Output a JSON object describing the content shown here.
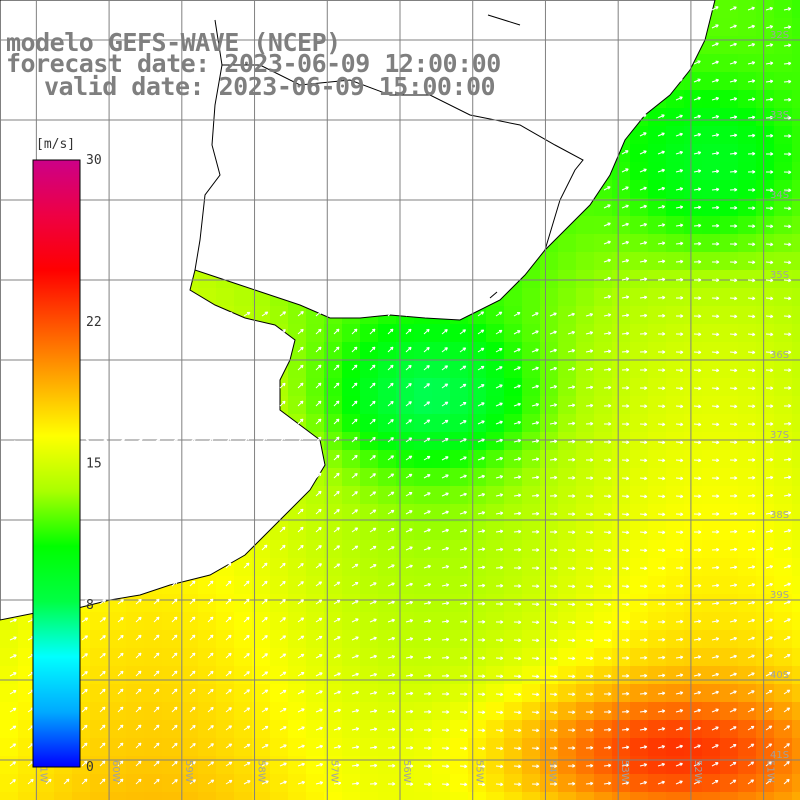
{
  "title": {
    "line1": "modelo GEFS-WAVE (NCEP)",
    "line2": "forecast date: 2023-06-09 12:00:00",
    "line3": "valid date: 2023-06-09 15:00:00"
  },
  "colorbar": {
    "unit": "[m/s]",
    "min": 0,
    "max": 30,
    "ticks": [
      {
        "value": 30,
        "label": "30"
      },
      {
        "value": 22,
        "label": "22"
      },
      {
        "value": 15,
        "label": "15"
      },
      {
        "value": 8,
        "label": "8"
      },
      {
        "value": 0,
        "label": "0"
      }
    ],
    "colors": [
      "#0000ff",
      "#00aaff",
      "#00ffff",
      "#00ff44",
      "#00ff00",
      "#aaff00",
      "#ffff00",
      "#ffaa00",
      "#ff5500",
      "#ff0000",
      "#ee0044",
      "#cc0088"
    ]
  },
  "axes": {
    "lon_labels": [
      "61W",
      "60W",
      "59W",
      "58W",
      "57W",
      "56W",
      "55W",
      "54W",
      "53W",
      "52W",
      "51W"
    ],
    "lat_labels": [
      "32S",
      "33S",
      "34S",
      "35S",
      "36S",
      "37S",
      "38S",
      "39S",
      "40S",
      "41S"
    ]
  },
  "map_data": {
    "variable": "wind speed",
    "unit": "m/s",
    "lon_range": [
      -61.5,
      -50.5
    ],
    "lat_range": [
      -41.5,
      -31.5
    ],
    "land_color": "#ffffff",
    "grid": true
  }
}
